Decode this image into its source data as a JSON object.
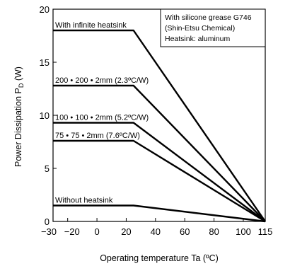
{
  "chart_data": {
    "type": "line",
    "title": "",
    "xlabel": "Operating temperature   Ta (ºC)",
    "ylabel": "Power Dissipation   P",
    "ylabel_subscript": "D",
    "ylabel_unit": " (W)",
    "xlim": [
      -30,
      115
    ],
    "ylim": [
      0,
      20
    ],
    "x_ticks": [
      -30,
      -20,
      0,
      20,
      40,
      60,
      80,
      100,
      115
    ],
    "x_tick_labels": [
      "−30",
      "−20",
      "0",
      "20",
      "40",
      "60",
      "80",
      "100",
      "115"
    ],
    "y_ticks": [
      0,
      5,
      10,
      15,
      20
    ],
    "y_tick_labels": [
      "0",
      "5",
      "10",
      "15",
      "20"
    ],
    "grid": false,
    "note_lines": [
      "With silicone grease G746",
      "(Shin-Etsu Chemical)",
      "Heatsink: aluminum"
    ],
    "series": [
      {
        "name": "With infinite heatsink",
        "x": [
          -30,
          25,
          115
        ],
        "y": [
          18,
          18,
          0
        ]
      },
      {
        "name": "200 • 200 • 2mm (2.3ºC/W)",
        "x": [
          -30,
          25,
          115
        ],
        "y": [
          12.8,
          12.8,
          0
        ]
      },
      {
        "name": "100 • 100 • 2mm (5.2ºC/W)",
        "x": [
          -30,
          25,
          115
        ],
        "y": [
          9.3,
          9.3,
          0
        ]
      },
      {
        "name": "75 • 75 • 2mm (7.6ºC/W)",
        "x": [
          -30,
          25,
          115
        ],
        "y": [
          7.6,
          7.6,
          0
        ]
      },
      {
        "name": "Without heatsink",
        "x": [
          -30,
          25,
          115
        ],
        "y": [
          1.5,
          1.5,
          0
        ]
      }
    ]
  }
}
